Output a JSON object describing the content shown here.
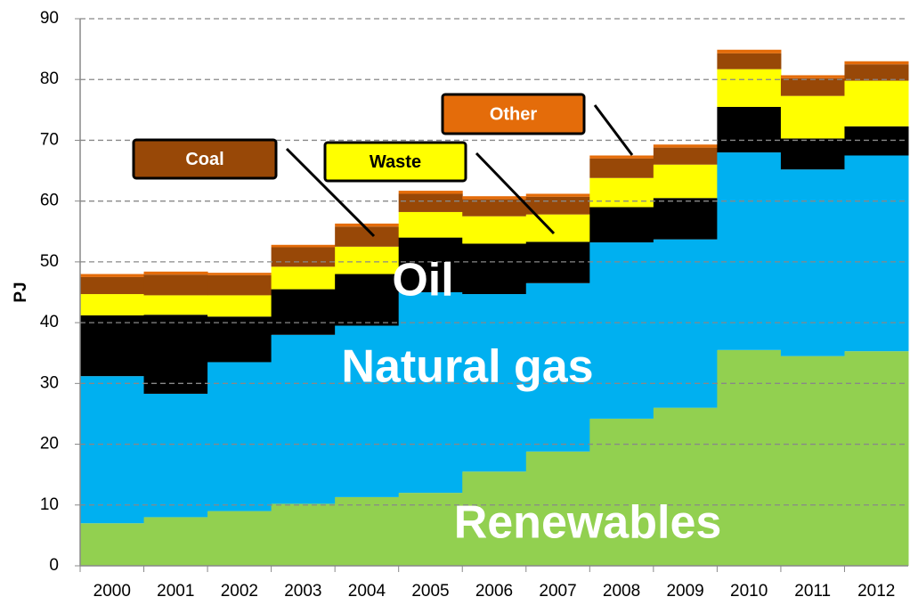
{
  "chart_data": {
    "type": "stacked_bar",
    "y_label": "PJ",
    "categories": [
      "2000",
      "2001",
      "2002",
      "2003",
      "2004",
      "2005",
      "2006",
      "2007",
      "2008",
      "2009",
      "2010",
      "2011",
      "2012"
    ],
    "series": [
      {
        "name": "Renewables",
        "color": "#92d050",
        "values": [
          7,
          8,
          9,
          10.2,
          11.3,
          12,
          15.5,
          18.8,
          24.2,
          26,
          35.5,
          34.5,
          35.3
        ]
      },
      {
        "name": "Natural gas",
        "color": "#00b0f0",
        "values": [
          24.2,
          20.3,
          24.5,
          27.8,
          28.2,
          33,
          29.2,
          27.7,
          29,
          27.7,
          32.5,
          30.7,
          32.2
        ]
      },
      {
        "name": "Oil",
        "color": "#000000",
        "values": [
          10,
          13,
          7.5,
          7.5,
          8.5,
          9,
          8.3,
          6.8,
          5.8,
          6.8,
          7.5,
          5.1,
          4.8
        ]
      },
      {
        "name": "Waste",
        "color": "#ffff00",
        "values": [
          3.5,
          3.2,
          3.5,
          3.7,
          4.5,
          4.2,
          4.5,
          4.5,
          4.8,
          5.5,
          6.2,
          7,
          7.5
        ]
      },
      {
        "name": "Coal",
        "color": "#984807",
        "values": [
          2.8,
          3.4,
          3.3,
          3.2,
          3.3,
          3,
          2.8,
          2.9,
          3.2,
          2.8,
          2.6,
          2.9,
          2.7
        ]
      },
      {
        "name": "Other",
        "color": "#e46c0a",
        "values": [
          0.5,
          0.5,
          0.4,
          0.4,
          0.5,
          0.5,
          0.5,
          0.5,
          0.5,
          0.5,
          0.6,
          0.5,
          0.5
        ]
      }
    ],
    "ylim": [
      0,
      90
    ],
    "yticks": [
      0,
      10,
      20,
      30,
      40,
      50,
      60,
      70,
      80,
      90
    ],
    "grid": true
  }
}
